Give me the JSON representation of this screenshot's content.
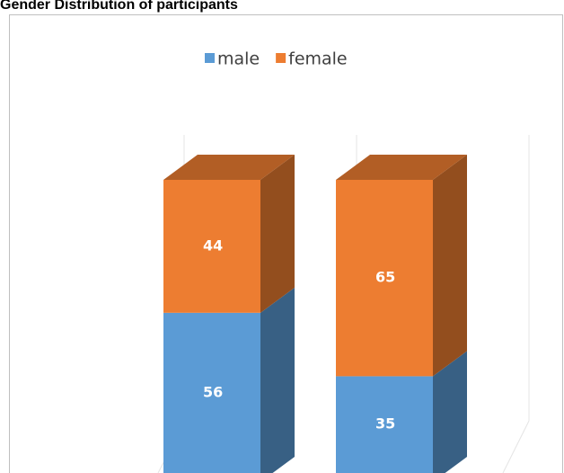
{
  "chart_data": {
    "type": "bar3d_stacked",
    "title": "Gender Distribution of participants",
    "categories": [
      null,
      null
    ],
    "series": [
      {
        "name": "male",
        "color": "#5b9bd5",
        "values": [
          56,
          35
        ]
      },
      {
        "name": "female",
        "color": "#ed7d31",
        "values": [
          44,
          65
        ]
      }
    ],
    "ylim": [
      0,
      100
    ],
    "legend": "top"
  }
}
